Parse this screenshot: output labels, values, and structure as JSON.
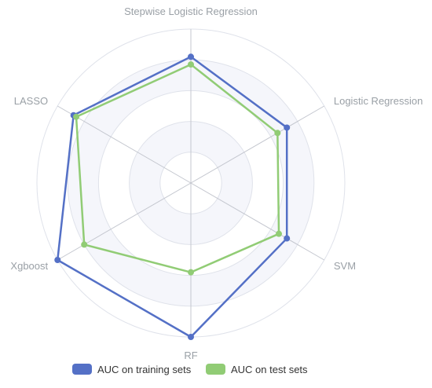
{
  "chart_data": {
    "type": "radar",
    "axes": [
      "Stepwise Logistic Regression",
      "Logistic Regression",
      "SVM",
      "RF",
      "Xgboost",
      "LASSO"
    ],
    "series": [
      {
        "name": "AUC on training sets",
        "values": [
          0.82,
          0.72,
          0.72,
          1.0,
          1.0,
          0.88
        ],
        "color": "#5470c6"
      },
      {
        "name": "AUC on test sets",
        "values": [
          0.77,
          0.65,
          0.66,
          0.58,
          0.8,
          0.86
        ],
        "color": "#91cc75"
      }
    ],
    "range": [
      0,
      1
    ],
    "rings": 5,
    "split_area_colors": [
      "#ffffff",
      "#f5f6fb"
    ],
    "grid_color": "#dfe2ea",
    "axis_line_color": "#c4c7cf",
    "legend_position": "bottom-center",
    "grid": true
  }
}
